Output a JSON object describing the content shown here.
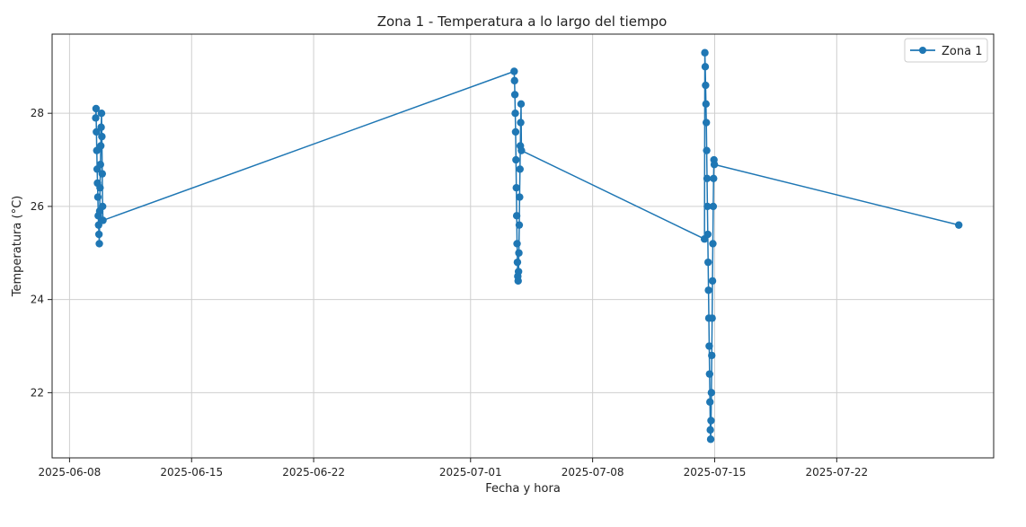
{
  "chart_data": {
    "type": "line",
    "title": "Zona 1 - Temperatura a lo largo del tiempo",
    "xlabel": "Fecha y hora",
    "ylabel": "Temperatura (°C)",
    "x_ticks": [
      "2025-06-08",
      "2025-06-15",
      "2025-06-22",
      "2025-07-01",
      "2025-07-08",
      "2025-07-15",
      "2025-07-22"
    ],
    "y_ticks": [
      "22",
      "24",
      "26",
      "28"
    ],
    "xlim": [
      "2025-06-07",
      "2025-07-31"
    ],
    "ylim": [
      20.6,
      29.7
    ],
    "grid": true,
    "legend_position": "top-right",
    "colors": {
      "series": "#1f77b4"
    },
    "series": [
      {
        "name": "Zona 1",
        "marker": "circle",
        "x": [
          "2025-06-09T12:00",
          "2025-06-09T12:30",
          "2025-06-09T13:00",
          "2025-06-09T13:30",
          "2025-06-09T14:00",
          "2025-06-09T14:30",
          "2025-06-09T15:00",
          "2025-06-09T15:30",
          "2025-06-09T16:00",
          "2025-06-09T16:30",
          "2025-06-09T17:00",
          "2025-06-09T17:30",
          "2025-06-09T18:00",
          "2025-06-09T18:30",
          "2025-06-09T19:00",
          "2025-06-09T19:30",
          "2025-06-09T20:00",
          "2025-06-09T20:30",
          "2025-06-09T21:00",
          "2025-06-09T21:30",
          "2025-06-09T22:00",
          "2025-07-03T12:00",
          "2025-07-03T12:30",
          "2025-07-03T13:00",
          "2025-07-03T13:30",
          "2025-07-03T14:00",
          "2025-07-03T14:30",
          "2025-07-03T15:00",
          "2025-07-03T15:30",
          "2025-07-03T16:00",
          "2025-07-03T16:30",
          "2025-07-03T17:00",
          "2025-07-03T17:30",
          "2025-07-03T18:00",
          "2025-07-03T18:30",
          "2025-07-03T19:00",
          "2025-07-03T19:30",
          "2025-07-03T20:00",
          "2025-07-03T20:30",
          "2025-07-03T21:00",
          "2025-07-03T21:30",
          "2025-07-03T22:00",
          "2025-07-14T10:00",
          "2025-07-14T10:30",
          "2025-07-14T11:00",
          "2025-07-14T11:30",
          "2025-07-14T12:00",
          "2025-07-14T12:30",
          "2025-07-14T13:00",
          "2025-07-14T13:30",
          "2025-07-14T14:00",
          "2025-07-14T14:30",
          "2025-07-14T15:00",
          "2025-07-14T15:30",
          "2025-07-14T16:00",
          "2025-07-14T16:30",
          "2025-07-14T17:00",
          "2025-07-14T17:30",
          "2025-07-14T18:00",
          "2025-07-14T18:30",
          "2025-07-14T19:00",
          "2025-07-14T19:30",
          "2025-07-14T20:00",
          "2025-07-14T20:30",
          "2025-07-14T21:00",
          "2025-07-14T21:30",
          "2025-07-14T22:00",
          "2025-07-14T22:30",
          "2025-07-14T23:00",
          "2025-07-14T23:30",
          "2025-07-29T00:00"
        ],
        "y": [
          27.9,
          28.1,
          27.6,
          27.2,
          26.8,
          26.5,
          26.2,
          25.8,
          25.6,
          25.4,
          25.2,
          25.9,
          26.4,
          26.9,
          27.3,
          27.7,
          28.0,
          27.5,
          26.7,
          26.0,
          25.7,
          28.9,
          28.7,
          28.4,
          28.0,
          27.6,
          27.0,
          26.4,
          25.8,
          25.2,
          24.8,
          24.5,
          24.4,
          24.6,
          25.0,
          25.6,
          26.2,
          26.8,
          27.3,
          27.8,
          28.2,
          27.2,
          25.3,
          29.3,
          29.0,
          28.6,
          28.2,
          27.8,
          27.2,
          26.6,
          26.0,
          25.4,
          24.8,
          24.2,
          23.6,
          23.0,
          22.4,
          21.8,
          21.2,
          21.0,
          21.4,
          22.0,
          22.8,
          23.6,
          24.4,
          25.2,
          26.0,
          26.6,
          27.0,
          26.9,
          25.6
        ]
      }
    ]
  }
}
